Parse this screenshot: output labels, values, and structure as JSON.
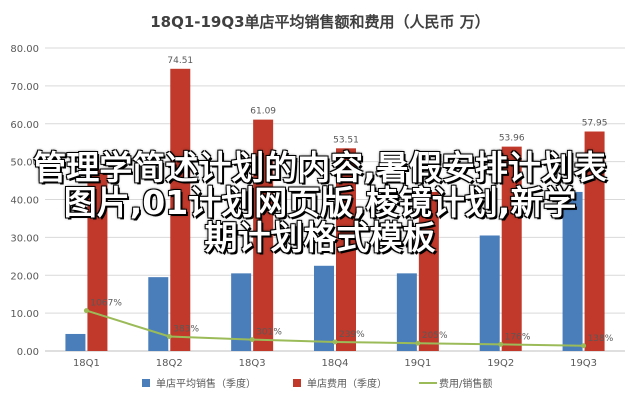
{
  "colors": {
    "sales": "#4a7ebb",
    "cost": "#c0392b",
    "ratio": "#9bbb59",
    "grid": "#d9d9d9",
    "axis_text": "#595959",
    "title": "#404040"
  },
  "chart_data": {
    "type": "bar",
    "title": "18Q1-19Q3单店平均销售额和费用（人民币 万）",
    "categories": [
      "18Q1",
      "18Q2",
      "18Q3",
      "18Q4",
      "19Q1",
      "19Q2",
      "19Q3"
    ],
    "ylim": [
      0,
      80
    ],
    "yticks": [
      "0.00",
      "10.00",
      "20.00",
      "30.00",
      "40.00",
      "50.00",
      "60.00",
      "70.00",
      "80.00"
    ],
    "grid": true,
    "legend_position": "bottom",
    "series": [
      {
        "name": "单店平均销售（季度）",
        "type": "bar",
        "values": [
          4.5,
          19.5,
          20.5,
          22.5,
          20.5,
          30.5,
          42.0
        ]
      },
      {
        "name": "单店费用（季度）",
        "type": "bar",
        "values": [
          48.0,
          74.51,
          61.09,
          53.51,
          42.0,
          53.96,
          57.95
        ],
        "data_labels": [
          "",
          "74.51",
          "61.09",
          "53.51",
          "",
          "53.96",
          "57.95"
        ]
      },
      {
        "name": "费用/销售额",
        "type": "line",
        "values": [
          10.67,
          3.83,
          3.01,
          2.39,
          2.05,
          1.76,
          1.38
        ],
        "data_labels": [
          "1067%",
          "383%",
          "301%",
          "239%",
          "205%",
          "176%",
          "138%"
        ]
      }
    ]
  },
  "overlay_text": [
    "管理学简述计划的内容,暑假安排计划表",
    "图片,01计划网页版,棱镜计划,新学",
    "期计划格式模板"
  ]
}
